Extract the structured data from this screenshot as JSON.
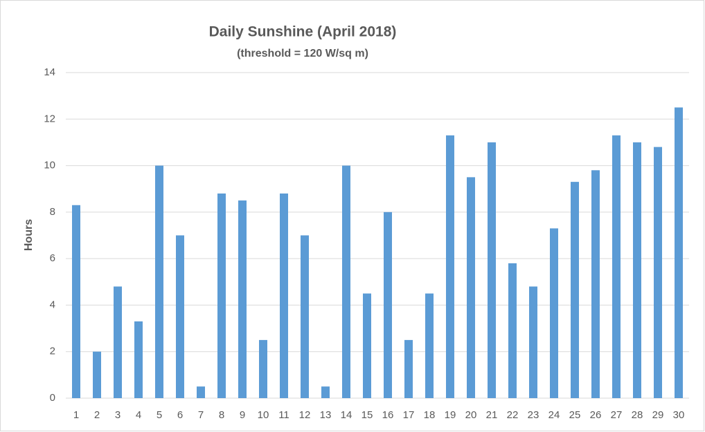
{
  "chart_data": {
    "type": "bar",
    "title": "Daily Sunshine (April 2018)",
    "subtitle": "(threshold = 120 W/sq m)",
    "y_label": "Hours",
    "categories": [
      "1",
      "2",
      "3",
      "4",
      "5",
      "6",
      "7",
      "8",
      "9",
      "10",
      "11",
      "12",
      "13",
      "14",
      "15",
      "16",
      "17",
      "18",
      "19",
      "20",
      "21",
      "22",
      "23",
      "24",
      "25",
      "26",
      "27",
      "28",
      "29",
      "30"
    ],
    "values": [
      8.3,
      2.0,
      4.8,
      3.3,
      10.0,
      7.0,
      0.5,
      8.8,
      8.5,
      2.5,
      8.8,
      7.0,
      0.5,
      10.0,
      4.5,
      8.0,
      2.5,
      4.5,
      11.3,
      9.5,
      11.0,
      5.8,
      4.8,
      7.3,
      9.3,
      9.8,
      11.3,
      11.0,
      10.8,
      12.5
    ],
    "color": "#5b9bd5",
    "ylim": [
      0,
      14
    ],
    "yticks": [
      0,
      2,
      4,
      6,
      8,
      10,
      12,
      14
    ],
    "grid": true
  }
}
